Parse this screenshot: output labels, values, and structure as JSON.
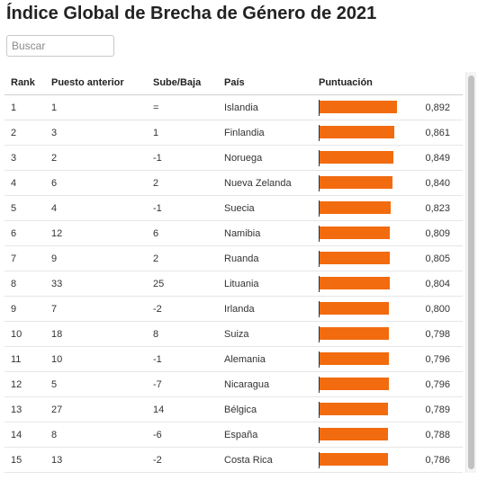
{
  "title": "Índice Global de Brecha de Género de 2021",
  "search": {
    "placeholder": "Buscar",
    "value": ""
  },
  "table": {
    "columns": {
      "rank": "Rank",
      "prev": "Puesto anterior",
      "change": "Sube/Baja",
      "country": "País",
      "score": "Puntuación"
    },
    "rows": [
      {
        "rank": "1",
        "prev": "1",
        "change": "=",
        "country": "Islandia",
        "score": "0,892",
        "score_num": 0.892
      },
      {
        "rank": "2",
        "prev": "3",
        "change": "1",
        "country": "Finlandia",
        "score": "0,861",
        "score_num": 0.861
      },
      {
        "rank": "3",
        "prev": "2",
        "change": "-1",
        "country": "Noruega",
        "score": "0,849",
        "score_num": 0.849
      },
      {
        "rank": "4",
        "prev": "6",
        "change": "2",
        "country": "Nueva Zelanda",
        "score": "0,840",
        "score_num": 0.84
      },
      {
        "rank": "5",
        "prev": "4",
        "change": "-1",
        "country": "Suecia",
        "score": "0,823",
        "score_num": 0.823
      },
      {
        "rank": "6",
        "prev": "12",
        "change": "6",
        "country": "Namibia",
        "score": "0,809",
        "score_num": 0.809
      },
      {
        "rank": "7",
        "prev": "9",
        "change": "2",
        "country": "Ruanda",
        "score": "0,805",
        "score_num": 0.805
      },
      {
        "rank": "8",
        "prev": "33",
        "change": "25",
        "country": "Lituania",
        "score": "0,804",
        "score_num": 0.804
      },
      {
        "rank": "9",
        "prev": "7",
        "change": "-2",
        "country": "Irlanda",
        "score": "0,800",
        "score_num": 0.8
      },
      {
        "rank": "10",
        "prev": "18",
        "change": "8",
        "country": "Suiza",
        "score": "0,798",
        "score_num": 0.798
      },
      {
        "rank": "11",
        "prev": "10",
        "change": "-1",
        "country": "Alemania",
        "score": "0,796",
        "score_num": 0.796
      },
      {
        "rank": "12",
        "prev": "5",
        "change": "-7",
        "country": "Nicaragua",
        "score": "0,796",
        "score_num": 0.796
      },
      {
        "rank": "13",
        "prev": "27",
        "change": "14",
        "country": "Bélgica",
        "score": "0,789",
        "score_num": 0.789
      },
      {
        "rank": "14",
        "prev": "8",
        "change": "-6",
        "country": "España",
        "score": "0,788",
        "score_num": 0.788
      },
      {
        "rank": "15",
        "prev": "13",
        "change": "-2",
        "country": "Costa Rica",
        "score": "0,786",
        "score_num": 0.786
      }
    ]
  },
  "colors": {
    "bar": "#f26b0f"
  }
}
